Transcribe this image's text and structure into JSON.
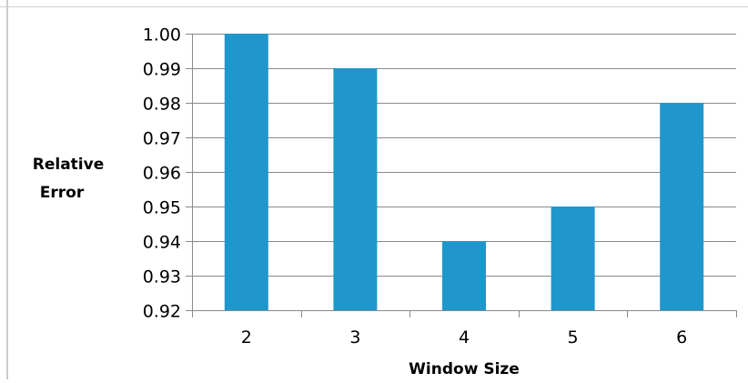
{
  "chart_data": {
    "type": "bar",
    "categories": [
      "2",
      "3",
      "4",
      "5",
      "6"
    ],
    "values": [
      1.0,
      0.99,
      0.94,
      0.95,
      0.98
    ],
    "xlabel": "Window Size",
    "ylabel_lines": [
      "Relative",
      "Error"
    ],
    "ylim": [
      0.92,
      1.0
    ],
    "y_ticks": [
      "0.92",
      "0.93",
      "0.94",
      "0.95",
      "0.96",
      "0.97",
      "0.98",
      "0.99",
      "1.00"
    ],
    "grid": true,
    "legend": "none",
    "colors": {
      "bar": "#1f97cc",
      "grid": "#8a8a8a"
    }
  }
}
